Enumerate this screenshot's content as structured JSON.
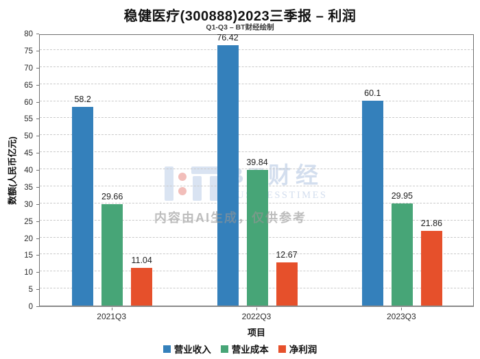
{
  "chart_data": {
    "type": "bar",
    "title": "稳健医疗(300888)2023三季报 – 利润",
    "subtitle": "Q1-Q3 – BT财经绘制",
    "categories": [
      "2021Q3",
      "2022Q3",
      "2023Q3"
    ],
    "series": [
      {
        "name": "营业收入",
        "color": "#3480bb",
        "values": [
          58.2,
          76.42,
          60.1
        ],
        "labels": [
          "58.2",
          "76.42",
          "60.1"
        ]
      },
      {
        "name": "营业成本",
        "color": "#47a577",
        "values": [
          29.66,
          39.84,
          29.95
        ],
        "labels": [
          "29.66",
          "39.84",
          "29.95"
        ]
      },
      {
        "name": "净利润",
        "color": "#e6502b",
        "values": [
          11.04,
          12.67,
          21.86
        ],
        "labels": [
          "11.04",
          "12.67",
          "21.86"
        ]
      }
    ],
    "xlabel": "项目",
    "ylabel": "数额(人民币亿元)",
    "ylim": [
      0,
      80
    ],
    "ytick_step": 5,
    "grid": true,
    "grid_style": "dashed",
    "legend_position": "bottom"
  },
  "watermark": {
    "brand": "BT财经",
    "brand_sub": "BUSINESSTIMES",
    "ai_note": "内容由AI生成，仅供参考",
    "logo_color": "#d3dff0",
    "logo_dot_color": "#f0b3ae"
  }
}
